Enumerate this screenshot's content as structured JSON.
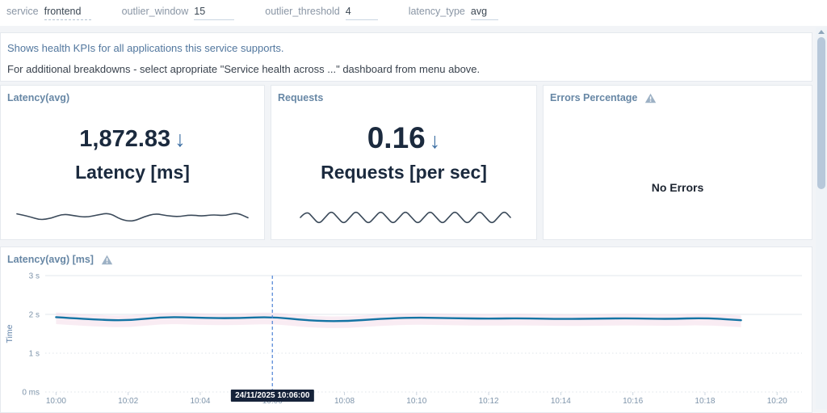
{
  "topbar": {
    "variables": [
      {
        "label": "service",
        "value": "frontend"
      },
      {
        "label": "outlier_window",
        "value": "15"
      },
      {
        "label": "outlier_threshold",
        "value": "4"
      },
      {
        "label": "latency_type",
        "value": "avg"
      }
    ]
  },
  "info_panel": {
    "line1": "Shows health KPIs for all applications this service supports.",
    "line2": "For additional breakdowns - select apropriate \"Service health across ...\" dashboard from menu above."
  },
  "kpis": {
    "latency": {
      "title": "Latency(avg)",
      "value": "1,872.83",
      "trend_icon": "↓",
      "unit_label": "Latency [ms]"
    },
    "requests": {
      "title": "Requests",
      "value": "0.16",
      "trend_icon": "↓",
      "unit_label": "Requests [per sec]"
    },
    "errors": {
      "title": "Errors Percentage",
      "status_text": "No Errors"
    }
  },
  "sparklines": {
    "latency": [
      0.4,
      0.52,
      0.72,
      0.62,
      0.4,
      0.5,
      0.58,
      0.45,
      0.35,
      0.7,
      0.8,
      0.55,
      0.38,
      0.5,
      0.55,
      0.45,
      0.52,
      0.44,
      0.5,
      0.33,
      0.6
    ],
    "requests": [
      0.5,
      0.08,
      0.5,
      0.92,
      0.5,
      0.08,
      0.5,
      0.92,
      0.5,
      0.08,
      0.5,
      0.92,
      0.5,
      0.08,
      0.5,
      0.92,
      0.5,
      0.08,
      0.5,
      0.92,
      0.5,
      0.08,
      0.5,
      0.92,
      0.5,
      0.08,
      0.5,
      0.92,
      0.5,
      0.08,
      0.5,
      0.92,
      0.5,
      0.08,
      0.5
    ]
  },
  "chart_panel": {
    "title": "Latency(avg) [ms]"
  },
  "chart_data": {
    "type": "line",
    "title": "Latency(avg) [ms]",
    "ylabel": "Time",
    "xlabel": "",
    "legend": "none",
    "grid": "horizontal",
    "ylim_seconds": [
      0,
      3
    ],
    "x_range_minutes": [
      -0.3,
      20.6
    ],
    "y_ticks": [
      {
        "label": "0 ms",
        "seconds": 0
      },
      {
        "label": "1 s",
        "seconds": 1
      },
      {
        "label": "2 s",
        "seconds": 2
      },
      {
        "label": "3 s",
        "seconds": 3
      }
    ],
    "x_ticks": [
      {
        "label": "10:00",
        "minute": 0
      },
      {
        "label": "10:02",
        "minute": 2
      },
      {
        "label": "10:04",
        "minute": 4
      },
      {
        "label": "10:06",
        "minute": 6
      },
      {
        "label": "10:08",
        "minute": 8
      },
      {
        "label": "10:10",
        "minute": 10
      },
      {
        "label": "10:12",
        "minute": 12
      },
      {
        "label": "10:14",
        "minute": 14
      },
      {
        "label": "10:16",
        "minute": 16
      },
      {
        "label": "10:18",
        "minute": 18
      },
      {
        "label": "10:20",
        "minute": 20
      }
    ],
    "series": [
      {
        "name": "Latency(avg)",
        "color": "#1474a4",
        "x_minutes": [
          0,
          1,
          2,
          3,
          4,
          5,
          6,
          7,
          8,
          9,
          10,
          11,
          12,
          13,
          14,
          15,
          16,
          17,
          18,
          19
        ],
        "values_seconds": [
          1.93,
          1.87,
          1.84,
          1.94,
          1.91,
          1.9,
          1.94,
          1.84,
          1.82,
          1.89,
          1.92,
          1.9,
          1.89,
          1.9,
          1.88,
          1.89,
          1.9,
          1.88,
          1.91,
          1.85
        ]
      }
    ],
    "band": {
      "color": "#f3d9e7",
      "opacity": 0.5,
      "upper_offset_seconds": 0.12,
      "lower_offset_seconds": 0.18
    },
    "cursor": {
      "x_minute": 6,
      "tooltip": "24/11/2025 10:06:00"
    }
  },
  "colors": {
    "panel_title": "#6787a5",
    "kpi_value": "#1b2a3e",
    "trend_arrow": "#3d6fa3",
    "chart_line": "#1474a4",
    "chart_band": "#f3d9e7",
    "cursor_line": "#4d82d6",
    "tooltip_bg": "#16233a",
    "info_link_text": "#52779e",
    "axis_text": "#7e94aa",
    "warning_icon": "#9db1c5"
  }
}
